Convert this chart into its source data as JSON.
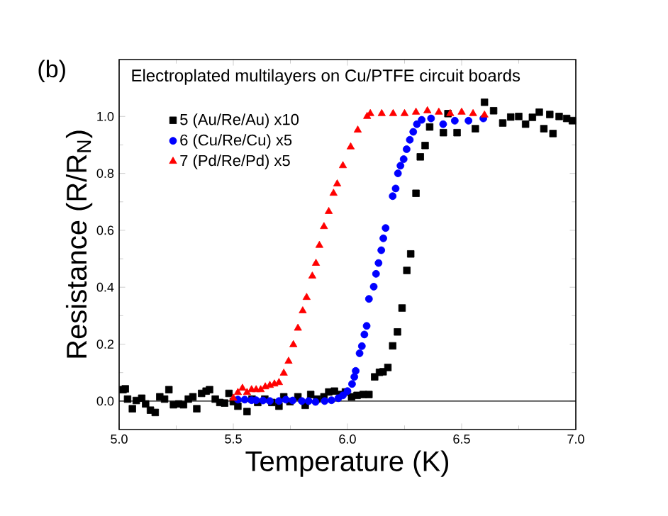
{
  "chart_data": {
    "type": "scatter",
    "title": "Electroplated multilayers on Cu/PTFE circuit boards",
    "xlabel": "Temperature (K)",
    "ylabel": "Resistance (R/R$_{N}$)",
    "annotations": [
      "(b)"
    ],
    "xlim": [
      5.0,
      7.0
    ],
    "ylim": [
      -0.1,
      1.2
    ],
    "xticks": [
      {
        "value": 5.0,
        "label": "5.0"
      },
      {
        "value": 5.5,
        "label": "5.5"
      },
      {
        "value": 6.0,
        "label": "6.0"
      },
      {
        "value": 6.5,
        "label": "6.5"
      },
      {
        "value": 7.0,
        "label": "7.0"
      }
    ],
    "yticks": [
      {
        "value": 0.0,
        "label": "0.0"
      },
      {
        "value": 0.2,
        "label": "0.2"
      },
      {
        "value": 0.4,
        "label": "0.4"
      },
      {
        "value": 0.6,
        "label": "0.6"
      },
      {
        "value": 0.8,
        "label": "0.8"
      },
      {
        "value": 1.0,
        "label": "1.0"
      }
    ],
    "legend": "top left",
    "grid": false,
    "ref_lines": [
      {
        "axis": "y",
        "value": 0,
        "color": "#000000",
        "line_style": "solid"
      }
    ],
    "series": [
      {
        "name": "5 (Au/Re/Au) x10",
        "color": "#000000",
        "marker": "square",
        "x": [
          5.017,
          5.027,
          5.037,
          5.058,
          5.075,
          5.099,
          5.116,
          5.137,
          5.158,
          5.178,
          5.199,
          5.218,
          5.238,
          5.261,
          5.282,
          5.303,
          5.323,
          5.34,
          5.361,
          5.381,
          5.396,
          5.421,
          5.441,
          5.462,
          5.481,
          5.5,
          5.52,
          5.56,
          5.582,
          5.607,
          5.638,
          5.669,
          5.7,
          5.721,
          5.748,
          5.783,
          5.815,
          5.839,
          5.866,
          5.897,
          5.918,
          5.943,
          5.97,
          5.991,
          6.018,
          6.042,
          6.069,
          6.094,
          6.119,
          6.14,
          6.156,
          6.177,
          6.198,
          6.219,
          6.239,
          6.26,
          6.277,
          6.3,
          6.319,
          6.34,
          6.36,
          6.42,
          6.44,
          6.48,
          6.56,
          6.6,
          6.64,
          6.68,
          6.715,
          6.75,
          6.78,
          6.81,
          6.84,
          6.86,
          6.886,
          6.9,
          6.927,
          6.96,
          6.985
        ],
        "values": [
          0.04,
          0.043,
          0.007,
          -0.027,
          0.002,
          0.01,
          -0.01,
          -0.032,
          -0.04,
          0.015,
          0.007,
          0.04,
          -0.013,
          -0.01,
          -0.013,
          0.007,
          0.015,
          -0.027,
          0.027,
          0.035,
          0.04,
          0.007,
          -0.005,
          -0.007,
          0.027,
          -0.002,
          -0.018,
          -0.037,
          0.007,
          -0.005,
          0.007,
          -0.005,
          -0.018,
          0.015,
          -0.002,
          0.015,
          -0.015,
          0.023,
          0.007,
          0.015,
          0.032,
          0.035,
          0.023,
          0.032,
          0.015,
          0.02,
          0.023,
          0.023,
          0.085,
          0.101,
          0.103,
          0.118,
          0.194,
          0.243,
          0.327,
          0.459,
          0.517,
          0.73,
          0.858,
          0.898,
          0.963,
          0.943,
          1.01,
          0.943,
          0.957,
          1.05,
          1.02,
          0.977,
          0.998,
          1.0,
          0.973,
          0.997,
          1.015,
          0.957,
          1.007,
          0.94,
          1.0,
          0.993,
          0.985
        ]
      },
      {
        "name": "6 (Cu/Re/Cu) x5",
        "color": "#0000ff",
        "marker": "circle",
        "x": [
          5.52,
          5.55,
          5.58,
          5.6,
          5.63,
          5.66,
          5.7,
          5.73,
          5.76,
          5.8,
          5.83,
          5.86,
          5.9,
          5.93,
          5.96,
          5.98,
          6.0,
          6.02,
          6.03,
          6.036,
          6.053,
          6.063,
          6.074,
          6.084,
          6.094,
          6.115,
          6.125,
          6.136,
          6.148,
          6.157,
          6.167,
          6.198,
          6.211,
          6.221,
          6.232,
          6.246,
          6.259,
          6.273,
          6.288,
          6.304,
          6.325,
          6.366,
          6.419,
          6.47,
          6.53,
          6.595
        ],
        "values": [
          0.005,
          0.005,
          0.003,
          0.003,
          0.002,
          0.0,
          0.0,
          0.005,
          0.002,
          0.0,
          0.0,
          -0.003,
          0.0,
          0.003,
          0.01,
          0.02,
          0.035,
          0.06,
          0.085,
          0.106,
          0.168,
          0.193,
          0.234,
          0.264,
          0.359,
          0.402,
          0.447,
          0.485,
          0.53,
          0.572,
          0.608,
          0.72,
          0.747,
          0.8,
          0.827,
          0.85,
          0.885,
          0.918,
          0.946,
          0.973,
          0.988,
          0.993,
          0.973,
          0.985,
          0.985,
          0.993
        ]
      },
      {
        "name": "7 (Pd/Re/Pd) x5",
        "color": "#ff0000",
        "marker": "triangle",
        "x": [
          5.5,
          5.52,
          5.54,
          5.56,
          5.58,
          5.6,
          5.62,
          5.64,
          5.66,
          5.68,
          5.7,
          5.721,
          5.742,
          5.763,
          5.783,
          5.804,
          5.821,
          5.846,
          5.862,
          5.877,
          5.897,
          5.918,
          5.939,
          5.955,
          5.98,
          6.014,
          6.045,
          6.086,
          6.1,
          6.15,
          6.2,
          6.25,
          6.3,
          6.35,
          6.4,
          6.45,
          6.5,
          6.55,
          6.6
        ],
        "values": [
          0.01,
          0.03,
          0.045,
          0.03,
          0.04,
          0.04,
          0.04,
          0.05,
          0.055,
          0.06,
          0.065,
          0.098,
          0.14,
          0.198,
          0.256,
          0.317,
          0.364,
          0.439,
          0.484,
          0.547,
          0.613,
          0.666,
          0.73,
          0.763,
          0.827,
          0.893,
          0.952,
          1.0,
          1.01,
          1.01,
          1.01,
          1.01,
          1.015,
          1.02,
          1.015,
          1.01,
          1.015,
          1.01,
          1.005
        ]
      }
    ]
  }
}
